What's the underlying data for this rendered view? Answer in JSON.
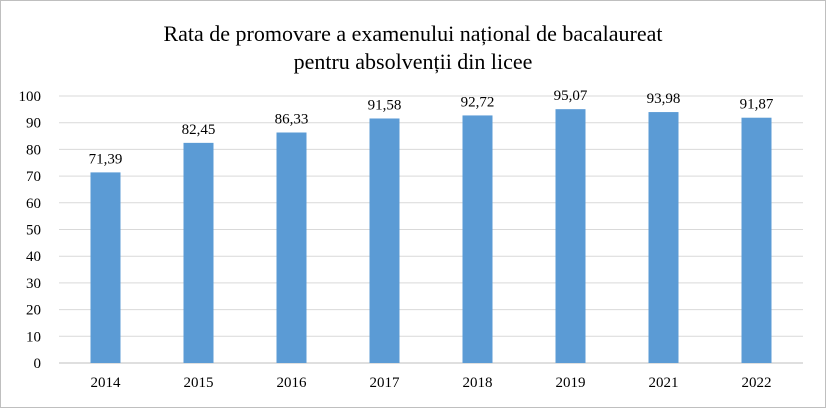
{
  "chart_data": {
    "type": "bar",
    "title": "Rata de promovare a examenului național de bacalaureat pentru absolvenții din licee",
    "title_lines": [
      "Rata de promovare a examenului național de bacalaureat",
      "pentru absolvenții din licee"
    ],
    "categories": [
      "2014",
      "2015",
      "2016",
      "2017",
      "2018",
      "2019",
      "2021",
      "2022"
    ],
    "values": [
      71.39,
      82.45,
      86.33,
      91.58,
      92.72,
      95.07,
      93.98,
      91.87
    ],
    "value_labels": [
      "71,39",
      "82,45",
      "86,33",
      "91,58",
      "92,72",
      "95,07",
      "93,98",
      "91,87"
    ],
    "ylim": [
      0,
      100
    ],
    "yticks": [
      0,
      10,
      20,
      30,
      40,
      50,
      60,
      70,
      80,
      90,
      100
    ],
    "xlabel": "",
    "ylabel": "",
    "grid": true,
    "legend": false,
    "bar_color": "#5b9bd5"
  }
}
